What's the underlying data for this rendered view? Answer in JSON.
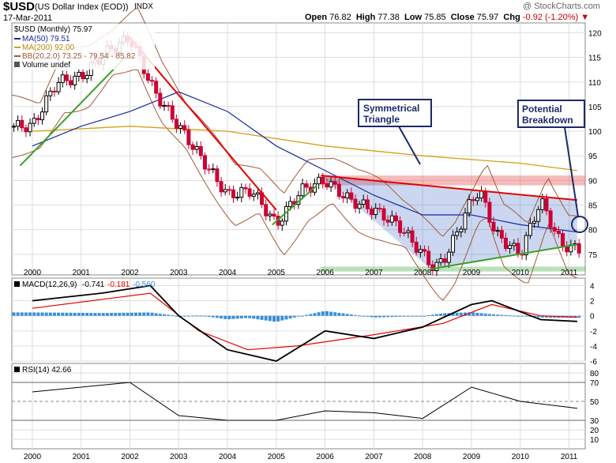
{
  "header": {
    "symbol": "$USD",
    "name": "(US Dollar Index (EOD))",
    "exchange": "INDX",
    "date": "17-Mar-2011",
    "watermark": "@ StockCharts.com",
    "open_label": "Open",
    "open": "76.82",
    "high_label": "High",
    "high": "77.38",
    "low_label": "Low",
    "low": "75.85",
    "close_label": "Close",
    "close": "75.97",
    "chg_label": "Chg",
    "chg": "-0.92 (-1.20%)"
  },
  "colors": {
    "bull": "#000000",
    "bear": "#cc0033",
    "ma50": "#1a2a9c",
    "ma200": "#d4a017",
    "bb": "#a05a3a",
    "trend_red": "#e60000",
    "trend_green": "#3aa02a",
    "macd": "#000000",
    "signal": "#e60000",
    "hist": "#3a8fd6",
    "rsi": "#000000"
  },
  "legend": {
    "price": "$USD (Monthly) 75.97",
    "ma50": "MA(50) 79.51",
    "ma200": "MA(200) 92.00",
    "bb": "BB(20,2.0) 73.25 - 79.54 - 85.82",
    "volume": "Volume undef",
    "macd_prefix": "MACD(12,26,9)",
    "macd_v": "-0.741",
    "macd_s": "-0.181",
    "macd_h": "-0.560",
    "rsi": "RSI(14) 42.66"
  },
  "annotations": {
    "triangle": [
      "Symmetrical",
      "Triangle"
    ],
    "breakdown": [
      "Potential",
      "Breakdown"
    ]
  },
  "chart_data": [
    {
      "type": "candlestick",
      "title": "$USD (Monthly) 75.97",
      "x_ticks": [
        "2000",
        "2001",
        "2002",
        "2003",
        "2004",
        "2005",
        "2006",
        "2007",
        "2008",
        "2009",
        "2010",
        "2011"
      ],
      "y_ticks": [
        75,
        80,
        85,
        90,
        95,
        100,
        105,
        110,
        115,
        120
      ],
      "ylim": [
        70.8,
        122
      ],
      "grid": true,
      "legend": "top-left",
      "series": [
        {
          "name": "$USD (Monthly) 75.97",
          "note": "monthly close, approximate",
          "x": [
            "2000-01",
            "2000-07",
            "2001-01",
            "2001-07",
            "2002-01",
            "2002-07",
            "2003-01",
            "2003-07",
            "2004-01",
            "2004-07",
            "2005-01",
            "2005-07",
            "2006-01",
            "2006-07",
            "2007-01",
            "2007-07",
            "2008-01",
            "2008-04",
            "2008-07",
            "2009-01",
            "2009-03",
            "2009-07",
            "2010-01",
            "2010-06",
            "2010-11",
            "2011-03"
          ],
          "values": [
            101,
            110,
            111,
            116,
            119,
            108,
            101,
            94,
            87,
            88,
            81,
            88,
            90,
            86,
            84,
            81,
            75,
            72,
            75,
            86,
            88,
            79,
            75,
            86,
            77,
            76
          ]
        },
        {
          "name": "MA(50) 79.51",
          "x": [
            "2000-01",
            "2001-01",
            "2002-01",
            "2003-01",
            "2004-01",
            "2005-01",
            "2006-01",
            "2007-01",
            "2008-01",
            "2009-01",
            "2010-01",
            "2011-03"
          ],
          "values": [
            97,
            101,
            104,
            108,
            104,
            97,
            92,
            87,
            83,
            83,
            81,
            79.51
          ]
        },
        {
          "name": "MA(200) 92.00",
          "x": [
            "2000-01",
            "2002-01",
            "2004-01",
            "2006-01",
            "2008-01",
            "2010-01",
            "2011-03"
          ],
          "values": [
            100,
            101,
            100,
            97,
            95,
            93.5,
            92
          ]
        }
      ],
      "bollinger": {
        "label": "BB(20,2.0) 73.25 - 79.54 - 85.82",
        "lower": 73.25,
        "middle": 79.54,
        "upper": 85.82
      },
      "trendlines": [
        {
          "color": "red",
          "from": [
            "2002-01",
            119
          ],
          "to": [
            "2005-01",
            84
          ]
        },
        {
          "color": "green",
          "from": [
            "1999-10",
            93
          ],
          "to": [
            "2002-01",
            116
          ]
        },
        {
          "color": "green",
          "from": [
            "2004-12",
            81
          ],
          "to": [
            "2005-11",
            89
          ]
        },
        {
          "color": "red",
          "from": [
            "2005-12",
            91
          ],
          "to": [
            "2011-03",
            86
          ]
        },
        {
          "color": "green",
          "from": [
            "2008-03",
            72
          ],
          "to": [
            "2011-03",
            77
          ]
        }
      ],
      "bands": [
        {
          "color": "red",
          "from": 89,
          "to": 91
        },
        {
          "color": "green",
          "from": 71.5,
          "to": 72.5
        }
      ]
    },
    {
      "type": "line",
      "title": "MACD(12,26,9) -0.741, -0.181, -0.560",
      "y_ticks": [
        -6,
        -4,
        -2,
        0,
        2,
        4
      ],
      "ylim": [
        -6,
        5
      ],
      "series": [
        {
          "name": "MACD",
          "x": [
            "2000-01",
            "2001-06",
            "2002-06",
            "2003-01",
            "2004-01",
            "2005-01",
            "2006-01",
            "2007-01",
            "2008-01",
            "2009-01",
            "2009-06",
            "2010-06",
            "2011-03"
          ],
          "values": [
            2,
            3,
            4,
            0,
            -4.5,
            -6,
            -2,
            -3,
            -1.5,
            1.5,
            2,
            -0.5,
            -0.741
          ]
        },
        {
          "name": "Signal",
          "x": [
            "2000-01",
            "2002-06",
            "2003-06",
            "2004-06",
            "2005-06",
            "2007-01",
            "2008-06",
            "2009-06",
            "2010-06",
            "2011-03"
          ],
          "values": [
            1,
            3,
            -2,
            -4.5,
            -4,
            -2.5,
            -1,
            1.5,
            0,
            -0.181
          ]
        }
      ]
    },
    {
      "type": "line",
      "title": "RSI(14) 42.66",
      "y_ticks": [
        10,
        20,
        30,
        50,
        70,
        80
      ],
      "ylim": [
        0,
        90
      ],
      "series": [
        {
          "name": "RSI(14) 42.66",
          "x": [
            "2000-01",
            "2001-01",
            "2002-01",
            "2003-01",
            "2004-01",
            "2005-01",
            "2006-01",
            "2007-01",
            "2008-01",
            "2009-01",
            "2010-01",
            "2011-03"
          ],
          "values": [
            60,
            65,
            70,
            35,
            30,
            30,
            40,
            38,
            32,
            65,
            50,
            42.66
          ]
        }
      ]
    }
  ]
}
